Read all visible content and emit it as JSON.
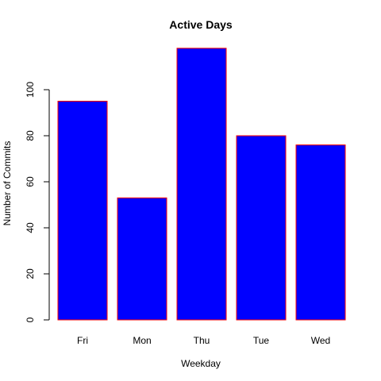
{
  "chart_data": {
    "type": "bar",
    "title": "Active Days",
    "xlabel": "Weekday",
    "ylabel": "Number of Commits",
    "categories": [
      "Fri",
      "Mon",
      "Thu",
      "Tue",
      "Wed"
    ],
    "values": [
      95,
      53,
      118,
      80,
      76
    ],
    "ylim": [
      0,
      118
    ],
    "yticks": [
      0,
      20,
      40,
      60,
      80,
      100
    ],
    "grid": false,
    "bar_fill": "#0000ff",
    "bar_border": "#ff0000"
  }
}
